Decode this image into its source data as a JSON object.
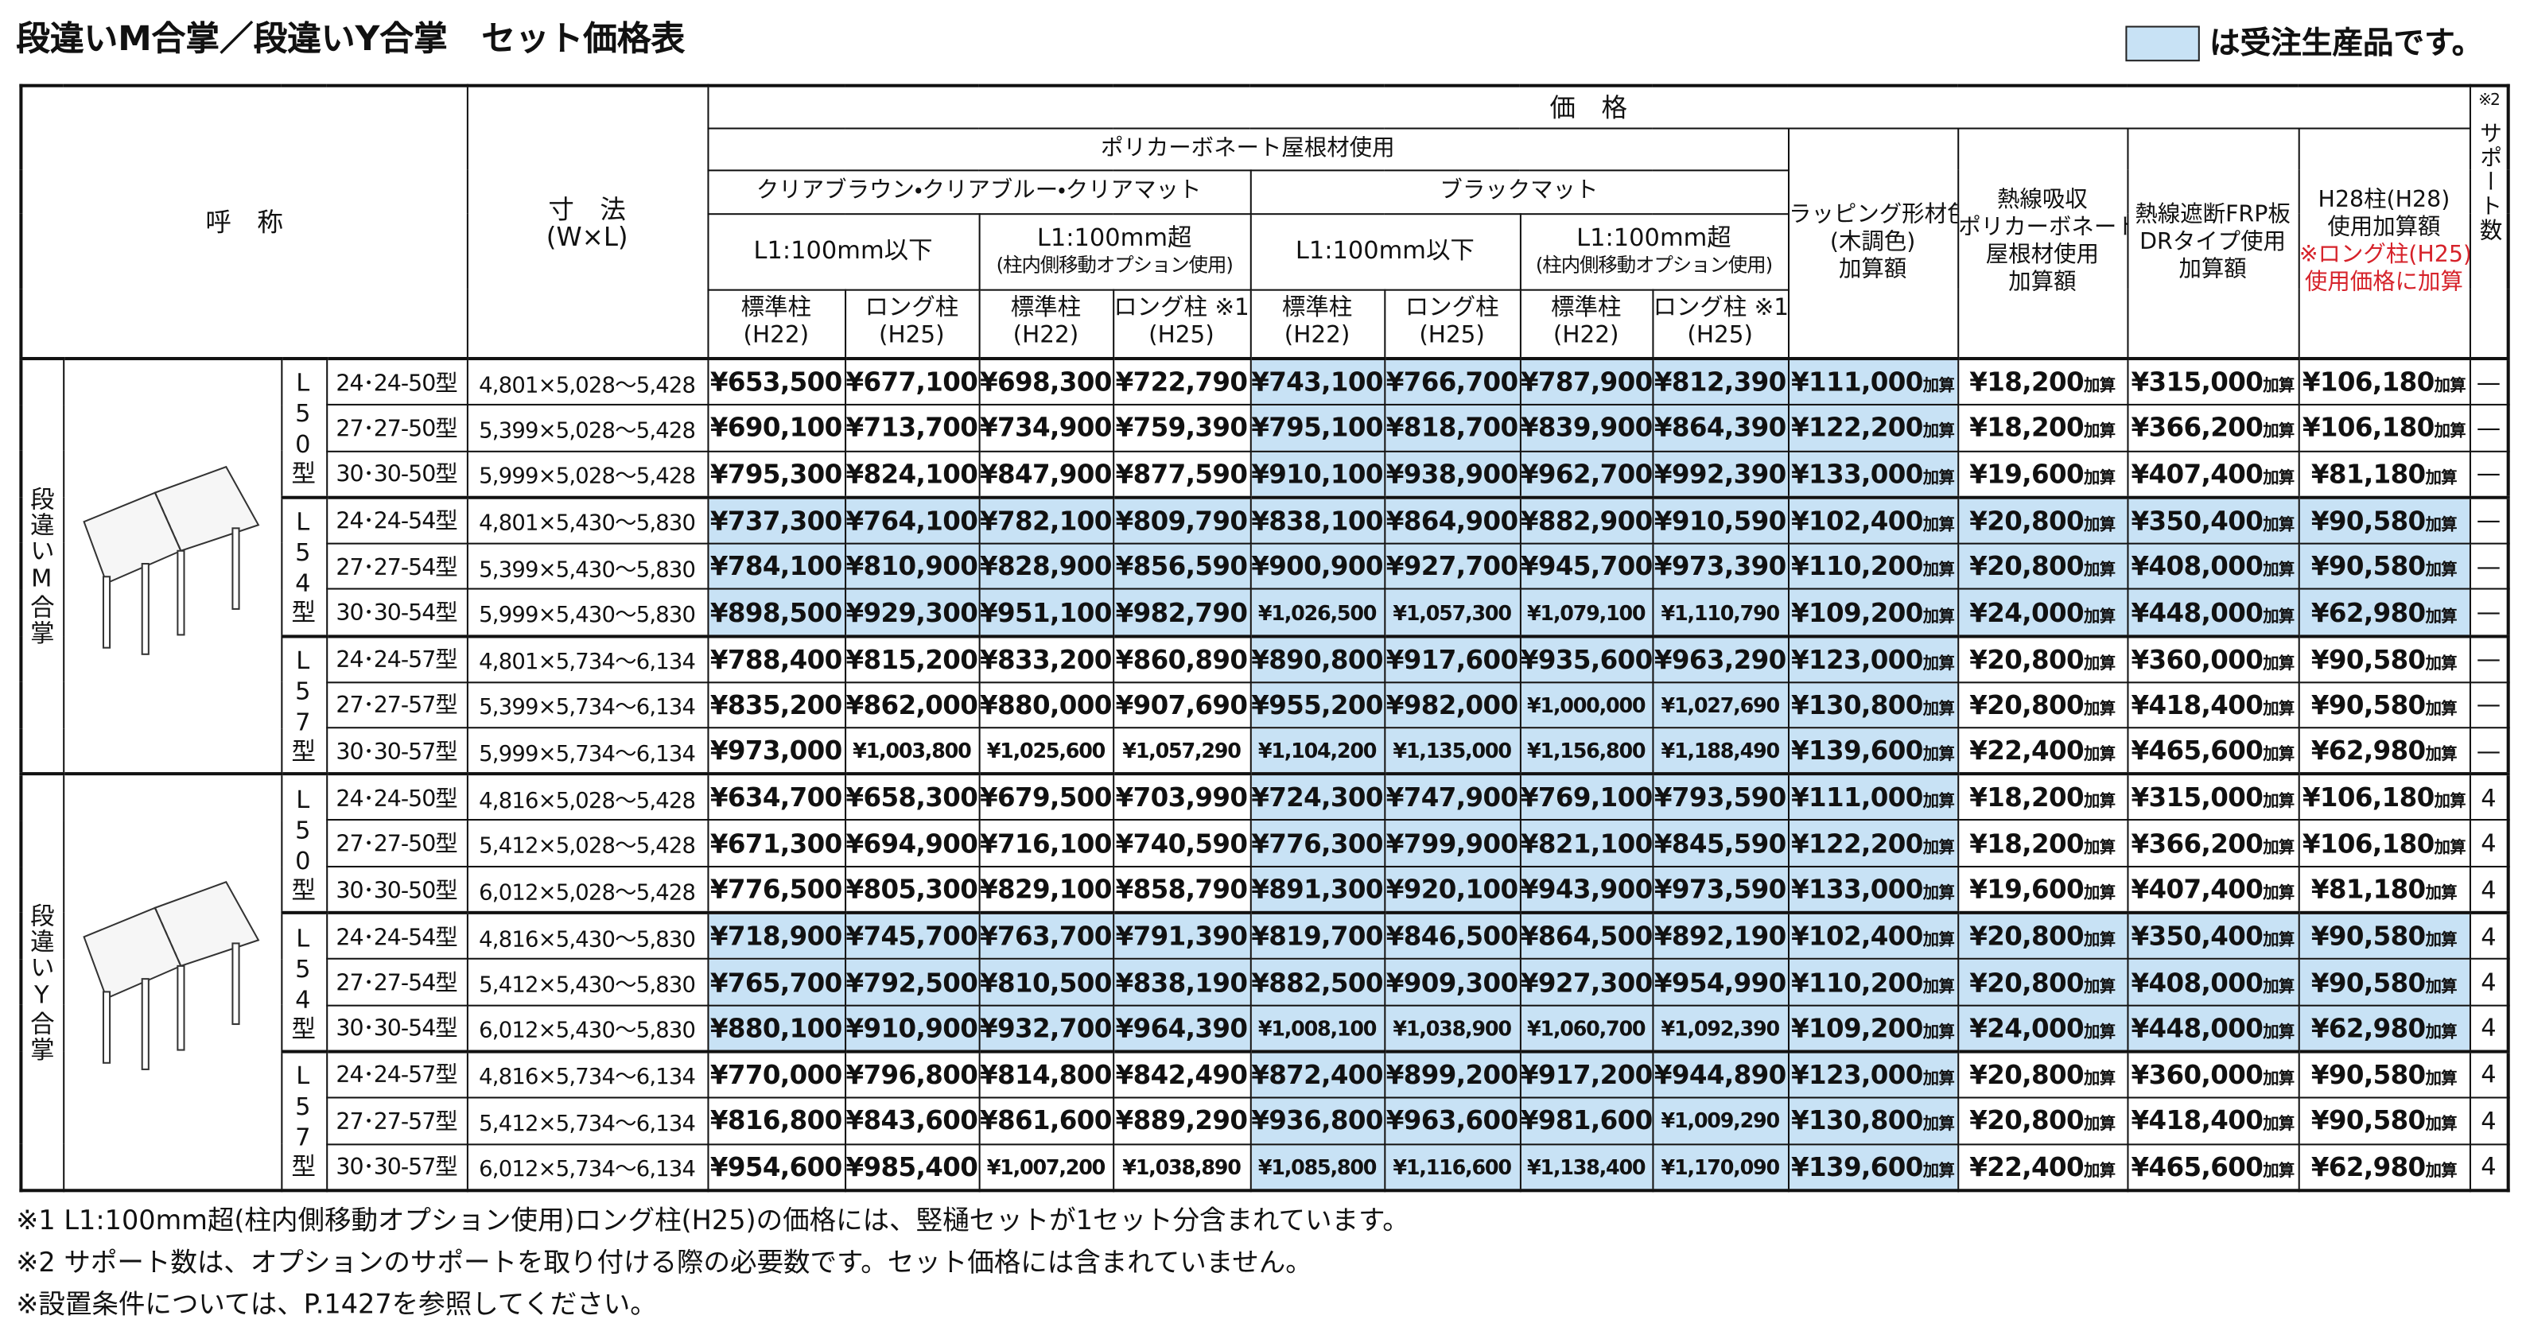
{
  "title": "段違いM合掌／段違いY合掌　セット価格表",
  "legend": {
    "text": "は受注生産品です。",
    "color": "#c8e2f5"
  },
  "header": {
    "name": "呼　称",
    "size": [
      "寸　法",
      "(W×L)"
    ],
    "price": "価　格",
    "note2": "※2",
    "support": "サポート数",
    "polycarbonate": "ポリカーボネート屋根材使用",
    "clear": "クリアブラウン・クリアブルー・クリアマット",
    "black": "ブラックマット",
    "l1_short": "L1:100mm以下",
    "l1_long": "L1:100mm超",
    "l1_long_note": "(柱内側移動オプション使用)",
    "posts": [
      [
        "標準柱",
        "(H22)"
      ],
      [
        "ロング柱",
        "(H25)"
      ],
      [
        "標準柱",
        "(H22)"
      ],
      [
        "ロング柱 ※1",
        "(H25)"
      ],
      [
        "標準柱",
        "(H22)"
      ],
      [
        "ロング柱",
        "(H25)"
      ],
      [
        "標準柱",
        "(H22)"
      ],
      [
        "ロング柱 ※1",
        "(H25)"
      ]
    ],
    "addons": [
      [
        "ラッピング形材色",
        "(木調色)",
        "加算額"
      ],
      [
        "熱線吸収",
        "ポリカーボネート",
        "屋根材使用",
        "加算額"
      ],
      [
        "熱線遮断FRP板",
        "DRタイプ使用",
        "加算額"
      ],
      [
        "H28柱(H28)",
        "使用加算額"
      ]
    ],
    "h28_note": [
      "※ロング柱(H25)",
      "使用価格に加算"
    ],
    "addon_suffix": "加算"
  },
  "highlight_columns": [
    false,
    false,
    false,
    false,
    true,
    true,
    true,
    true,
    true,
    false,
    false,
    false
  ],
  "groups": [
    {
      "name": "段違いM合掌",
      "subgroups": [
        {
          "name": "L50型",
          "made_to_order": false,
          "rows": [
            {
              "code": "24･24-50型",
              "size": "4,801×5,028～5,428",
              "prices": [
                "¥653,500",
                "¥677,100",
                "¥698,300",
                "¥722,790",
                "¥743,100",
                "¥766,700",
                "¥787,900",
                "¥812,390"
              ],
              "addons": [
                "¥111,000",
                "¥18,200",
                "¥315,000",
                "¥106,180"
              ],
              "support": "—"
            },
            {
              "code": "27･27-50型",
              "size": "5,399×5,028～5,428",
              "prices": [
                "¥690,100",
                "¥713,700",
                "¥734,900",
                "¥759,390",
                "¥795,100",
                "¥818,700",
                "¥839,900",
                "¥864,390"
              ],
              "addons": [
                "¥122,200",
                "¥18,200",
                "¥366,200",
                "¥106,180"
              ],
              "support": "—"
            },
            {
              "code": "30･30-50型",
              "size": "5,999×5,028～5,428",
              "prices": [
                "¥795,300",
                "¥824,100",
                "¥847,900",
                "¥877,590",
                "¥910,100",
                "¥938,900",
                "¥962,700",
                "¥992,390"
              ],
              "addons": [
                "¥133,000",
                "¥19,600",
                "¥407,400",
                "¥81,180"
              ],
              "support": "—"
            }
          ]
        },
        {
          "name": "L54型",
          "made_to_order": true,
          "rows": [
            {
              "code": "24･24-54型",
              "size": "4,801×5,430～5,830",
              "prices": [
                "¥737,300",
                "¥764,100",
                "¥782,100",
                "¥809,790",
                "¥838,100",
                "¥864,900",
                "¥882,900",
                "¥910,590"
              ],
              "addons": [
                "¥102,400",
                "¥20,800",
                "¥350,400",
                "¥90,580"
              ],
              "support": "—"
            },
            {
              "code": "27･27-54型",
              "size": "5,399×5,430～5,830",
              "prices": [
                "¥784,100",
                "¥810,900",
                "¥828,900",
                "¥856,590",
                "¥900,900",
                "¥927,700",
                "¥945,700",
                "¥973,390"
              ],
              "addons": [
                "¥110,200",
                "¥20,800",
                "¥408,000",
                "¥90,580"
              ],
              "support": "—"
            },
            {
              "code": "30･30-54型",
              "size": "5,999×5,430～5,830",
              "prices": [
                "¥898,500",
                "¥929,300",
                "¥951,100",
                "¥982,790",
                "¥1,026,500",
                "¥1,057,300",
                "¥1,079,100",
                "¥1,110,790"
              ],
              "addons": [
                "¥109,200",
                "¥24,000",
                "¥448,000",
                "¥62,980"
              ],
              "support": "—"
            }
          ]
        },
        {
          "name": "L57型",
          "made_to_order": false,
          "rows": [
            {
              "code": "24･24-57型",
              "size": "4,801×5,734～6,134",
              "prices": [
                "¥788,400",
                "¥815,200",
                "¥833,200",
                "¥860,890",
                "¥890,800",
                "¥917,600",
                "¥935,600",
                "¥963,290"
              ],
              "addons": [
                "¥123,000",
                "¥20,800",
                "¥360,000",
                "¥90,580"
              ],
              "support": "—"
            },
            {
              "code": "27･27-57型",
              "size": "5,399×5,734～6,134",
              "prices": [
                "¥835,200",
                "¥862,000",
                "¥880,000",
                "¥907,690",
                "¥955,200",
                "¥982,000",
                "¥1,000,000",
                "¥1,027,690"
              ],
              "addons": [
                "¥130,800",
                "¥20,800",
                "¥418,400",
                "¥90,580"
              ],
              "support": "—"
            },
            {
              "code": "30･30-57型",
              "size": "5,999×5,734～6,134",
              "prices": [
                "¥973,000",
                "¥1,003,800",
                "¥1,025,600",
                "¥1,057,290",
                "¥1,104,200",
                "¥1,135,000",
                "¥1,156,800",
                "¥1,188,490"
              ],
              "addons": [
                "¥139,600",
                "¥22,400",
                "¥465,600",
                "¥62,980"
              ],
              "support": "—"
            }
          ]
        }
      ]
    },
    {
      "name": "段違いY合掌",
      "subgroups": [
        {
          "name": "L50型",
          "made_to_order": false,
          "rows": [
            {
              "code": "24･24-50型",
              "size": "4,816×5,028～5,428",
              "prices": [
                "¥634,700",
                "¥658,300",
                "¥679,500",
                "¥703,990",
                "¥724,300",
                "¥747,900",
                "¥769,100",
                "¥793,590"
              ],
              "addons": [
                "¥111,000",
                "¥18,200",
                "¥315,000",
                "¥106,180"
              ],
              "support": "4"
            },
            {
              "code": "27･27-50型",
              "size": "5,412×5,028～5,428",
              "prices": [
                "¥671,300",
                "¥694,900",
                "¥716,100",
                "¥740,590",
                "¥776,300",
                "¥799,900",
                "¥821,100",
                "¥845,590"
              ],
              "addons": [
                "¥122,200",
                "¥18,200",
                "¥366,200",
                "¥106,180"
              ],
              "support": "4"
            },
            {
              "code": "30･30-50型",
              "size": "6,012×5,028～5,428",
              "prices": [
                "¥776,500",
                "¥805,300",
                "¥829,100",
                "¥858,790",
                "¥891,300",
                "¥920,100",
                "¥943,900",
                "¥973,590"
              ],
              "addons": [
                "¥133,000",
                "¥19,600",
                "¥407,400",
                "¥81,180"
              ],
              "support": "4"
            }
          ]
        },
        {
          "name": "L54型",
          "made_to_order": true,
          "rows": [
            {
              "code": "24･24-54型",
              "size": "4,816×5,430～5,830",
              "prices": [
                "¥718,900",
                "¥745,700",
                "¥763,700",
                "¥791,390",
                "¥819,700",
                "¥846,500",
                "¥864,500",
                "¥892,190"
              ],
              "addons": [
                "¥102,400",
                "¥20,800",
                "¥350,400",
                "¥90,580"
              ],
              "support": "4"
            },
            {
              "code": "27･27-54型",
              "size": "5,412×5,430～5,830",
              "prices": [
                "¥765,700",
                "¥792,500",
                "¥810,500",
                "¥838,190",
                "¥882,500",
                "¥909,300",
                "¥927,300",
                "¥954,990"
              ],
              "addons": [
                "¥110,200",
                "¥20,800",
                "¥408,000",
                "¥90,580"
              ],
              "support": "4"
            },
            {
              "code": "30･30-54型",
              "size": "6,012×5,430～5,830",
              "prices": [
                "¥880,100",
                "¥910,900",
                "¥932,700",
                "¥964,390",
                "¥1,008,100",
                "¥1,038,900",
                "¥1,060,700",
                "¥1,092,390"
              ],
              "addons": [
                "¥109,200",
                "¥24,000",
                "¥448,000",
                "¥62,980"
              ],
              "support": "4"
            }
          ]
        },
        {
          "name": "L57型",
          "made_to_order": false,
          "rows": [
            {
              "code": "24･24-57型",
              "size": "4,816×5,734～6,134",
              "prices": [
                "¥770,000",
                "¥796,800",
                "¥814,800",
                "¥842,490",
                "¥872,400",
                "¥899,200",
                "¥917,200",
                "¥944,890"
              ],
              "addons": [
                "¥123,000",
                "¥20,800",
                "¥360,000",
                "¥90,580"
              ],
              "support": "4"
            },
            {
              "code": "27･27-57型",
              "size": "5,412×5,734～6,134",
              "prices": [
                "¥816,800",
                "¥843,600",
                "¥861,600",
                "¥889,290",
                "¥936,800",
                "¥963,600",
                "¥981,600",
                "¥1,009,290"
              ],
              "addons": [
                "¥130,800",
                "¥20,800",
                "¥418,400",
                "¥90,580"
              ],
              "support": "4"
            },
            {
              "code": "30･30-57型",
              "size": "6,012×5,734～6,134",
              "prices": [
                "¥954,600",
                "¥985,400",
                "¥1,007,200",
                "¥1,038,890",
                "¥1,085,800",
                "¥1,116,600",
                "¥1,138,400",
                "¥1,170,090"
              ],
              "addons": [
                "¥139,600",
                "¥22,400",
                "¥465,600",
                "¥62,980"
              ],
              "support": "4"
            }
          ]
        }
      ]
    }
  ],
  "footnotes": [
    "※1 L1:100mm超(柱内側移動オプション使用)ロング柱(H25)の価格には、竪樋セットが1セット分含まれています。",
    "※2 サポート数は、オプションのサポートを取り付ける際の必要数です。セット価格には含まれていません。",
    "※設置条件については、P.1427を参照してください。"
  ]
}
